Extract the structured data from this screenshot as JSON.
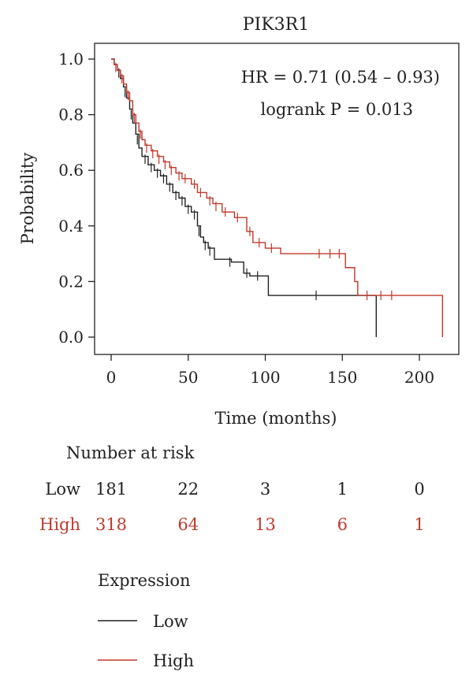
{
  "chart_data": {
    "type": "line",
    "title": "PIK3R1",
    "xlabel": "Time (months)",
    "ylabel": "Probability",
    "xlim": [
      -5,
      220
    ],
    "ylim": [
      0.0,
      1.0
    ],
    "x_ticks": [
      "0",
      "50",
      "100",
      "150",
      "200"
    ],
    "x_tick_values": [
      0,
      50,
      100,
      150,
      200
    ],
    "y_ticks": [
      "0.0",
      "0.2",
      "0.4",
      "0.6",
      "0.8",
      "1.0"
    ],
    "y_tick_values": [
      0.0,
      0.2,
      0.4,
      0.6,
      0.8,
      1.0
    ],
    "grid": false,
    "annotations": {
      "hr": "HR = 0.71 (0.54 – 0.93)",
      "logrank": "logrank P = 0.013"
    },
    "series": [
      {
        "name": "Low",
        "color": "#222222",
        "steps": [
          [
            0,
            1.0
          ],
          [
            2,
            0.98
          ],
          [
            4,
            0.96
          ],
          [
            6,
            0.93
          ],
          [
            8,
            0.9
          ],
          [
            10,
            0.86
          ],
          [
            12,
            0.82
          ],
          [
            14,
            0.77
          ],
          [
            16,
            0.73
          ],
          [
            18,
            0.68
          ],
          [
            20,
            0.65
          ],
          [
            24,
            0.62
          ],
          [
            28,
            0.6
          ],
          [
            32,
            0.58
          ],
          [
            36,
            0.55
          ],
          [
            40,
            0.52
          ],
          [
            44,
            0.5
          ],
          [
            48,
            0.47
          ],
          [
            52,
            0.45
          ],
          [
            56,
            0.4
          ],
          [
            58,
            0.36
          ],
          [
            60,
            0.34
          ],
          [
            63,
            0.32
          ],
          [
            67,
            0.28
          ],
          [
            78,
            0.27
          ],
          [
            86,
            0.23
          ],
          [
            90,
            0.22
          ],
          [
            102,
            0.15
          ],
          [
            172,
            0.0
          ]
        ],
        "censored": [
          [
            5,
            0.95
          ],
          [
            9,
            0.88
          ],
          [
            13,
            0.8
          ],
          [
            17,
            0.71
          ],
          [
            22,
            0.64
          ],
          [
            26,
            0.61
          ],
          [
            30,
            0.59
          ],
          [
            34,
            0.57
          ],
          [
            38,
            0.54
          ],
          [
            42,
            0.51
          ],
          [
            46,
            0.49
          ],
          [
            50,
            0.46
          ],
          [
            54,
            0.44
          ],
          [
            57,
            0.38
          ],
          [
            61,
            0.33
          ],
          [
            64,
            0.31
          ],
          [
            77,
            0.27
          ],
          [
            88,
            0.23
          ],
          [
            95,
            0.22
          ],
          [
            133,
            0.15
          ]
        ]
      },
      {
        "name": "High",
        "color": "#c0392b",
        "steps": [
          [
            0,
            1.0
          ],
          [
            2,
            0.98
          ],
          [
            4,
            0.96
          ],
          [
            6,
            0.94
          ],
          [
            8,
            0.91
          ],
          [
            10,
            0.88
          ],
          [
            12,
            0.85
          ],
          [
            14,
            0.8
          ],
          [
            16,
            0.77
          ],
          [
            18,
            0.74
          ],
          [
            20,
            0.71
          ],
          [
            22,
            0.69
          ],
          [
            26,
            0.67
          ],
          [
            30,
            0.65
          ],
          [
            34,
            0.63
          ],
          [
            38,
            0.61
          ],
          [
            42,
            0.59
          ],
          [
            46,
            0.57
          ],
          [
            52,
            0.55
          ],
          [
            56,
            0.52
          ],
          [
            62,
            0.5
          ],
          [
            66,
            0.48
          ],
          [
            72,
            0.45
          ],
          [
            80,
            0.43
          ],
          [
            88,
            0.38
          ],
          [
            92,
            0.34
          ],
          [
            100,
            0.32
          ],
          [
            110,
            0.3
          ],
          [
            152,
            0.25
          ],
          [
            158,
            0.2
          ],
          [
            160,
            0.15
          ],
          [
            215,
            0.0
          ]
        ],
        "censored": [
          [
            3,
            0.97
          ],
          [
            7,
            0.93
          ],
          [
            11,
            0.87
          ],
          [
            15,
            0.79
          ],
          [
            19,
            0.73
          ],
          [
            23,
            0.68
          ],
          [
            27,
            0.66
          ],
          [
            31,
            0.64
          ],
          [
            35,
            0.62
          ],
          [
            39,
            0.6
          ],
          [
            44,
            0.58
          ],
          [
            48,
            0.57
          ],
          [
            54,
            0.55
          ],
          [
            58,
            0.52
          ],
          [
            64,
            0.49
          ],
          [
            68,
            0.47
          ],
          [
            74,
            0.45
          ],
          [
            82,
            0.43
          ],
          [
            90,
            0.38
          ],
          [
            96,
            0.34
          ],
          [
            104,
            0.32
          ],
          [
            135,
            0.3
          ],
          [
            142,
            0.3
          ],
          [
            148,
            0.3
          ],
          [
            166,
            0.15
          ],
          [
            175,
            0.15
          ],
          [
            182,
            0.15
          ]
        ]
      }
    ],
    "number_at_risk": {
      "title": "Number at risk",
      "rows": [
        {
          "label": "Low",
          "values": [
            "181",
            "22",
            "3",
            "1",
            "0"
          ],
          "color": "#222222"
        },
        {
          "label": "High",
          "values": [
            "318",
            "64",
            "13",
            "6",
            "1"
          ],
          "color": "#c0392b"
        }
      ]
    },
    "legend": {
      "title": "Expression",
      "placement": "bottom-left",
      "items": [
        {
          "label": "Low",
          "color": "#222222"
        },
        {
          "label": "High",
          "color": "#c0392b"
        }
      ]
    }
  }
}
